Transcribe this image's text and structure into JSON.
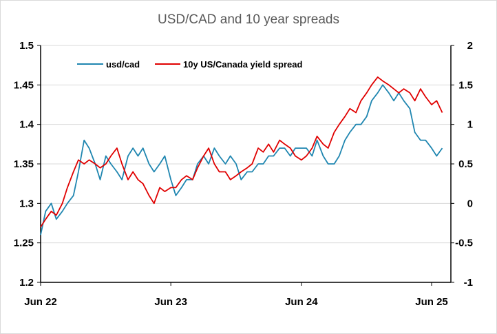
{
  "chart_data": {
    "type": "line",
    "title": "USD/CAD and 10 year spreads",
    "x_tick_labels": [
      "Jun 22",
      "Jun 23",
      "Jun 24",
      "Jun 25"
    ],
    "x_range": [
      "2022-06-01",
      "2025-07-15"
    ],
    "y_left": {
      "range": [
        1.2,
        1.5
      ],
      "ticks": [
        "1.2",
        "1.25",
        "1.3",
        "1.35",
        "1.4",
        "1.45",
        "1.5"
      ]
    },
    "y_right": {
      "range": [
        -1,
        2
      ],
      "ticks": [
        "-1",
        "-0.5",
        "0",
        "0.5",
        "1",
        "1.5",
        "2"
      ]
    },
    "grid": true,
    "legend": "top-left",
    "colors": {
      "usdcad": "#1f86b0",
      "spread": "#e00000",
      "grid": "#d9d9d9",
      "axis": "#000000"
    },
    "series": [
      {
        "name": "usd/cad",
        "axis": "left",
        "x": [
          "2022-06-01",
          "2022-06-15",
          "2022-07-01",
          "2022-07-15",
          "2022-08-01",
          "2022-08-15",
          "2022-09-01",
          "2022-09-15",
          "2022-10-01",
          "2022-10-15",
          "2022-11-01",
          "2022-11-15",
          "2022-12-01",
          "2022-12-15",
          "2023-01-01",
          "2023-01-15",
          "2023-02-01",
          "2023-02-15",
          "2023-03-01",
          "2023-03-15",
          "2023-04-01",
          "2023-04-15",
          "2023-05-01",
          "2023-05-15",
          "2023-06-01",
          "2023-06-15",
          "2023-07-01",
          "2023-07-15",
          "2023-08-01",
          "2023-08-15",
          "2023-09-01",
          "2023-09-15",
          "2023-10-01",
          "2023-10-15",
          "2023-11-01",
          "2023-11-15",
          "2023-12-01",
          "2023-12-15",
          "2024-01-01",
          "2024-01-15",
          "2024-02-01",
          "2024-02-15",
          "2024-03-01",
          "2024-03-15",
          "2024-04-01",
          "2024-04-15",
          "2024-05-01",
          "2024-05-15",
          "2024-06-01",
          "2024-06-15",
          "2024-07-01",
          "2024-07-15",
          "2024-08-01",
          "2024-08-15",
          "2024-09-01",
          "2024-09-15",
          "2024-10-01",
          "2024-10-15",
          "2024-11-01",
          "2024-11-15",
          "2024-12-01",
          "2024-12-15",
          "2025-01-01",
          "2025-01-15",
          "2025-02-01",
          "2025-02-15",
          "2025-03-01",
          "2025-03-15",
          "2025-04-01",
          "2025-04-15",
          "2025-05-01",
          "2025-05-15",
          "2025-06-01",
          "2025-06-15",
          "2025-07-01"
        ],
        "values": [
          1.26,
          1.29,
          1.3,
          1.28,
          1.29,
          1.3,
          1.31,
          1.34,
          1.38,
          1.37,
          1.35,
          1.33,
          1.36,
          1.35,
          1.34,
          1.33,
          1.36,
          1.37,
          1.36,
          1.37,
          1.35,
          1.34,
          1.35,
          1.36,
          1.33,
          1.31,
          1.32,
          1.33,
          1.33,
          1.35,
          1.36,
          1.35,
          1.37,
          1.36,
          1.35,
          1.36,
          1.35,
          1.33,
          1.34,
          1.34,
          1.35,
          1.35,
          1.36,
          1.36,
          1.37,
          1.37,
          1.36,
          1.37,
          1.37,
          1.37,
          1.36,
          1.38,
          1.36,
          1.35,
          1.35,
          1.36,
          1.38,
          1.39,
          1.4,
          1.4,
          1.41,
          1.43,
          1.44,
          1.45,
          1.44,
          1.43,
          1.44,
          1.43,
          1.42,
          1.39,
          1.38,
          1.38,
          1.37,
          1.36,
          1.37
        ]
      },
      {
        "name": "10y US/Canada yield spread",
        "axis": "right",
        "x": [
          "2022-06-01",
          "2022-06-15",
          "2022-07-01",
          "2022-07-15",
          "2022-08-01",
          "2022-08-15",
          "2022-09-01",
          "2022-09-15",
          "2022-10-01",
          "2022-10-15",
          "2022-11-01",
          "2022-11-15",
          "2022-12-01",
          "2022-12-15",
          "2023-01-01",
          "2023-01-15",
          "2023-02-01",
          "2023-02-15",
          "2023-03-01",
          "2023-03-15",
          "2023-04-01",
          "2023-04-15",
          "2023-05-01",
          "2023-05-15",
          "2023-06-01",
          "2023-06-15",
          "2023-07-01",
          "2023-07-15",
          "2023-08-01",
          "2023-08-15",
          "2023-09-01",
          "2023-09-15",
          "2023-10-01",
          "2023-10-15",
          "2023-11-01",
          "2023-11-15",
          "2023-12-01",
          "2023-12-15",
          "2024-01-01",
          "2024-01-15",
          "2024-02-01",
          "2024-02-15",
          "2024-03-01",
          "2024-03-15",
          "2024-04-01",
          "2024-04-15",
          "2024-05-01",
          "2024-05-15",
          "2024-06-01",
          "2024-06-15",
          "2024-07-01",
          "2024-07-15",
          "2024-08-01",
          "2024-08-15",
          "2024-09-01",
          "2024-09-15",
          "2024-10-01",
          "2024-10-15",
          "2024-11-01",
          "2024-11-15",
          "2024-12-01",
          "2024-12-15",
          "2025-01-01",
          "2025-01-15",
          "2025-02-01",
          "2025-02-15",
          "2025-03-01",
          "2025-03-15",
          "2025-04-01",
          "2025-04-15",
          "2025-05-01",
          "2025-05-15",
          "2025-06-01",
          "2025-06-15",
          "2025-07-01"
        ],
        "values": [
          -0.3,
          -0.2,
          -0.1,
          -0.15,
          0.0,
          0.2,
          0.4,
          0.55,
          0.5,
          0.55,
          0.5,
          0.45,
          0.5,
          0.6,
          0.7,
          0.5,
          0.3,
          0.4,
          0.3,
          0.25,
          0.1,
          0.0,
          0.2,
          0.15,
          0.2,
          0.2,
          0.3,
          0.35,
          0.3,
          0.45,
          0.6,
          0.7,
          0.5,
          0.4,
          0.4,
          0.3,
          0.35,
          0.4,
          0.45,
          0.5,
          0.7,
          0.65,
          0.75,
          0.65,
          0.8,
          0.75,
          0.7,
          0.6,
          0.55,
          0.6,
          0.7,
          0.85,
          0.75,
          0.7,
          0.9,
          1.0,
          1.1,
          1.2,
          1.15,
          1.3,
          1.4,
          1.5,
          1.6,
          1.55,
          1.5,
          1.45,
          1.4,
          1.45,
          1.4,
          1.3,
          1.45,
          1.35,
          1.25,
          1.3,
          1.15
        ]
      }
    ]
  }
}
